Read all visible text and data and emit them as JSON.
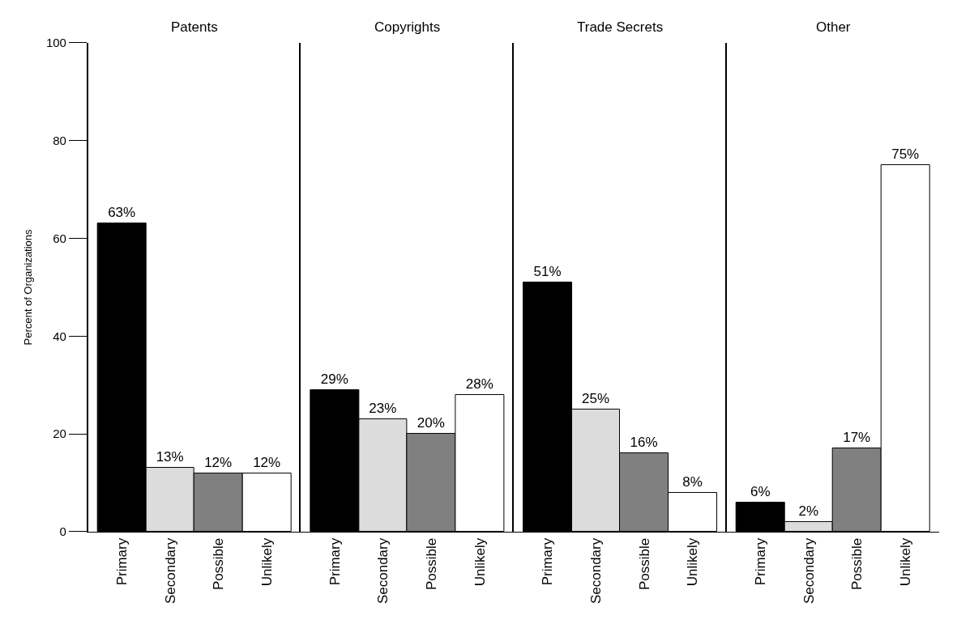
{
  "chart_data": [
    {
      "type": "bar",
      "title": "Patents",
      "ylabel": "Percent of Organizations",
      "categories": [
        "Primary",
        "Secondary",
        "Possible",
        "Unlikely"
      ],
      "values": [
        63,
        13,
        12,
        12
      ],
      "value_labels": [
        "63%",
        "13%",
        "12%",
        "12%"
      ],
      "colors": [
        "#000000",
        "#dcdcdc",
        "#808080",
        "#ffffff"
      ],
      "ylim": [
        0,
        100
      ],
      "yticks": [
        0,
        20,
        40,
        60,
        80,
        100
      ]
    },
    {
      "type": "bar",
      "title": "Copyrights",
      "categories": [
        "Primary",
        "Secondary",
        "Possible",
        "Unlikely"
      ],
      "values": [
        29,
        23,
        20,
        28
      ],
      "value_labels": [
        "29%",
        "23%",
        "20%",
        "28%"
      ],
      "colors": [
        "#000000",
        "#dcdcdc",
        "#808080",
        "#ffffff"
      ],
      "ylim": [
        0,
        100
      ],
      "yticks": [
        0,
        20,
        40,
        60,
        80,
        100
      ],
      "tick_labels": "x"
    },
    {
      "type": "bar",
      "title": "Trade Secrets",
      "categories": [
        "Primary",
        "Secondary",
        "Possible",
        "Unlikely"
      ],
      "values": [
        51,
        25,
        16,
        8
      ],
      "value_labels": [
        "51%",
        "25%",
        "16%",
        "8%"
      ],
      "colors": [
        "#000000",
        "#dcdcdc",
        "#808080",
        "#ffffff"
      ],
      "ylim": [
        0,
        100
      ],
      "yticks": [
        0,
        20,
        40,
        60,
        80,
        100
      ],
      "tick_labels": "x"
    },
    {
      "type": "bar",
      "title": "Other",
      "categories": [
        "Primary",
        "Secondary",
        "Possible",
        "Unlikely"
      ],
      "values": [
        6,
        2,
        17,
        75
      ],
      "value_labels": [
        "6%",
        "2%",
        "17%",
        "75%"
      ],
      "colors": [
        "#000000",
        "#dcdcdc",
        "#808080",
        "#ffffff"
      ],
      "ylim": [
        0,
        100
      ],
      "yticks": [
        0,
        20,
        40,
        60,
        80,
        100
      ],
      "tick_labels": "x"
    }
  ]
}
